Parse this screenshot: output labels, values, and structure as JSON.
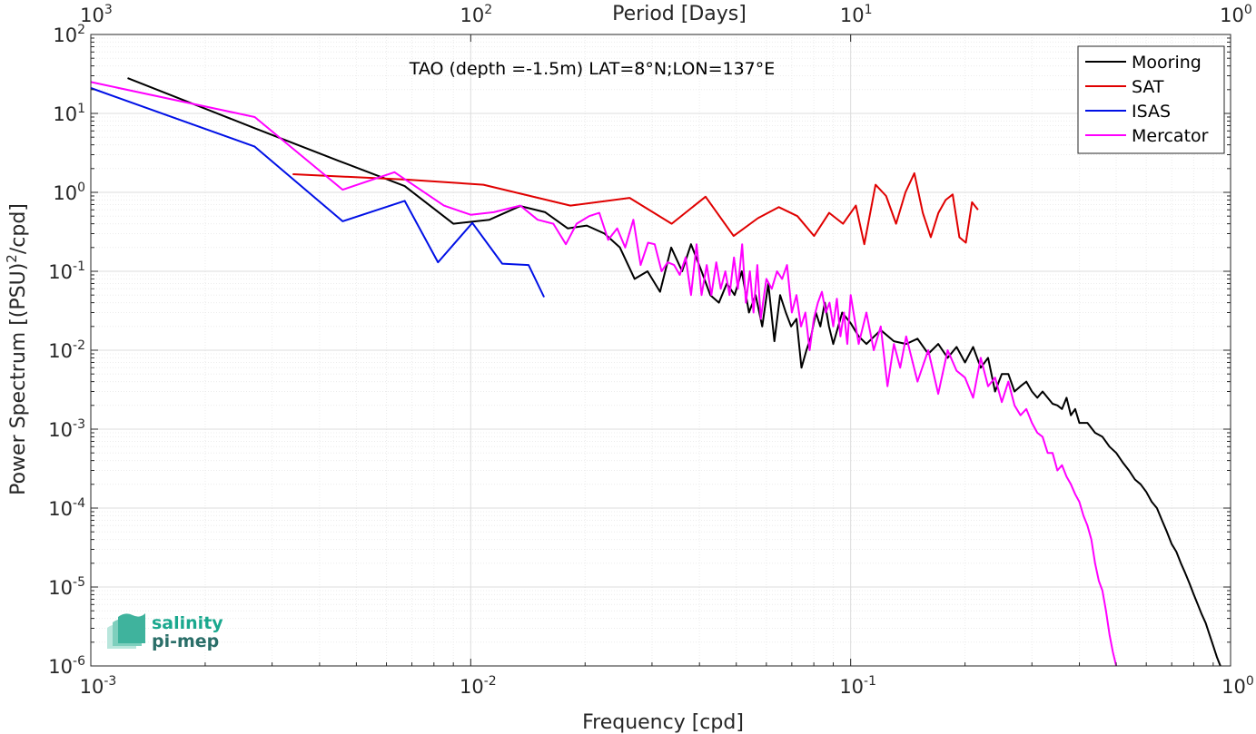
{
  "colors": {
    "mooring": "#000000",
    "sat": "#e00000",
    "isas": "#0010e6",
    "mercator": "#ff00ff",
    "grid_major": "#dcdcdc",
    "grid_minor": "#ececec",
    "axis": "#262626",
    "logo_teal": "#1aa88e",
    "logo_dark": "#2a6e68"
  },
  "logo": {
    "line1": "salinity",
    "line2": "pi-mep",
    "icon": "salinity-pi-mep-logo"
  },
  "chart_data": {
    "type": "line",
    "title": "",
    "annotation": "TAO (depth =-1.5m) LAT=8°N;LON=137°E",
    "xlabel": "Frequency [cpd]",
    "ylabel": "Power Spectrum [(PSU)²/cpd]",
    "ylabel_parts": {
      "before": "Power Spectrum [(PSU)",
      "sup": "2",
      "after": "/cpd]"
    },
    "top_xlabel": "Period [Days]",
    "xscale": "log",
    "yscale": "log",
    "xlim": [
      0.001,
      1
    ],
    "ylim": [
      1e-06,
      100
    ],
    "grid": true,
    "legend_position": "top-right",
    "x_ticks": [
      {
        "value": 0.001,
        "base": "10",
        "exp": "-3"
      },
      {
        "value": 0.01,
        "base": "10",
        "exp": "-2"
      },
      {
        "value": 0.1,
        "base": "10",
        "exp": "-1"
      },
      {
        "value": 1,
        "base": "10",
        "exp": "0"
      }
    ],
    "top_ticks": [
      {
        "period": 1000,
        "base": "10",
        "exp": "3"
      },
      {
        "period": 100,
        "base": "10",
        "exp": "2"
      },
      {
        "period": 10,
        "base": "10",
        "exp": "1"
      },
      {
        "period": 1,
        "base": "10",
        "exp": "0"
      }
    ],
    "y_ticks": [
      {
        "value": 1e-06,
        "base": "10",
        "exp": "-6"
      },
      {
        "value": 1e-05,
        "base": "10",
        "exp": "-5"
      },
      {
        "value": 0.0001,
        "base": "10",
        "exp": "-4"
      },
      {
        "value": 0.001,
        "base": "10",
        "exp": "-3"
      },
      {
        "value": 0.01,
        "base": "10",
        "exp": "-2"
      },
      {
        "value": 0.1,
        "base": "10",
        "exp": "-1"
      },
      {
        "value": 1,
        "base": "10",
        "exp": "0"
      },
      {
        "value": 10,
        "base": "10",
        "exp": "1"
      },
      {
        "value": 100,
        "base": "10",
        "exp": "2"
      }
    ],
    "series": [
      {
        "name": "Mooring",
        "color": "#000000",
        "x": [
          0.00125,
          0.0027,
          0.0045,
          0.0067,
          0.009,
          0.0112,
          0.0135,
          0.0157,
          0.018,
          0.0202,
          0.0225,
          0.0247,
          0.027,
          0.0292,
          0.0315,
          0.0337,
          0.036,
          0.038,
          0.0405,
          0.0427,
          0.045,
          0.0472,
          0.0495,
          0.0517,
          0.054,
          0.0562,
          0.0585,
          0.0607,
          0.063,
          0.0652,
          0.0675,
          0.0697,
          0.072,
          0.0742,
          0.0765,
          0.0787,
          0.081,
          0.0832,
          0.0855,
          0.0877,
          0.09,
          0.095,
          0.1,
          0.105,
          0.11,
          0.12,
          0.13,
          0.14,
          0.15,
          0.16,
          0.17,
          0.18,
          0.19,
          0.2,
          0.21,
          0.22,
          0.23,
          0.24,
          0.25,
          0.26,
          0.27,
          0.28,
          0.29,
          0.3,
          0.31,
          0.32,
          0.33,
          0.34,
          0.35,
          0.36,
          0.37,
          0.38,
          0.39,
          0.4,
          0.42,
          0.44,
          0.46,
          0.48,
          0.5,
          0.52,
          0.54,
          0.56,
          0.58,
          0.6,
          0.62,
          0.64,
          0.66,
          0.68,
          0.7,
          0.72,
          0.74,
          0.76,
          0.78,
          0.8,
          0.82,
          0.84,
          0.86,
          0.88,
          0.9,
          0.92,
          0.94
        ],
        "y": [
          28,
          6.5,
          2.5,
          1.2,
          0.4,
          0.45,
          0.67,
          0.56,
          0.35,
          0.38,
          0.3,
          0.2,
          0.08,
          0.1,
          0.055,
          0.2,
          0.1,
          0.22,
          0.1,
          0.05,
          0.04,
          0.07,
          0.05,
          0.1,
          0.03,
          0.05,
          0.02,
          0.07,
          0.013,
          0.05,
          0.03,
          0.02,
          0.025,
          0.006,
          0.01,
          0.015,
          0.03,
          0.02,
          0.04,
          0.02,
          0.012,
          0.03,
          0.022,
          0.015,
          0.012,
          0.018,
          0.013,
          0.012,
          0.014,
          0.009,
          0.012,
          0.008,
          0.011,
          0.007,
          0.011,
          0.006,
          0.008,
          0.003,
          0.005,
          0.005,
          0.003,
          0.0035,
          0.004,
          0.003,
          0.0025,
          0.003,
          0.0025,
          0.0021,
          0.002,
          0.0018,
          0.0025,
          0.0015,
          0.0018,
          0.0012,
          0.0012,
          0.0009,
          0.0008,
          0.0006,
          0.0005,
          0.00038,
          0.0003,
          0.00023,
          0.0002,
          0.00016,
          0.00012,
          0.0001,
          7e-05,
          5e-05,
          3.5e-05,
          2.8e-05,
          2e-05,
          1.5e-05,
          1.1e-05,
          8e-06,
          6e-06,
          4.5e-06,
          3.5e-06,
          2.5e-06,
          1.8e-06,
          1.3e-06,
          1e-06
        ]
      },
      {
        "name": "SAT",
        "color": "#e00000",
        "x": [
          0.0034,
          0.0068,
          0.0108,
          0.0183,
          0.0262,
          0.0338,
          0.0415,
          0.0492,
          0.057,
          0.0647,
          0.0724,
          0.0801,
          0.0878,
          0.0955,
          0.1032,
          0.1086,
          0.1163,
          0.124,
          0.1317,
          0.1394,
          0.1471,
          0.1548,
          0.1625,
          0.1702,
          0.1779,
          0.1856,
          0.1933,
          0.201,
          0.2087,
          0.2164
        ],
        "y": [
          1.7,
          1.45,
          1.25,
          0.68,
          0.85,
          0.4,
          0.88,
          0.28,
          0.47,
          0.65,
          0.5,
          0.28,
          0.55,
          0.4,
          0.68,
          0.22,
          1.25,
          0.9,
          0.4,
          1.0,
          1.75,
          0.55,
          0.27,
          0.55,
          0.8,
          0.94,
          0.27,
          0.23,
          0.75,
          0.6
        ]
      },
      {
        "name": "ISAS",
        "color": "#0010e6",
        "x": [
          0.001,
          0.0027,
          0.0046,
          0.0067,
          0.0082,
          0.0101,
          0.0121,
          0.0142,
          0.0156
        ],
        "y": [
          21,
          3.8,
          0.43,
          0.78,
          0.13,
          0.41,
          0.125,
          0.12,
          0.047
        ]
      },
      {
        "name": "Mercator",
        "color": "#ff00ff",
        "x": [
          0.001,
          0.0027,
          0.0046,
          0.0063,
          0.0085,
          0.01,
          0.0115,
          0.0135,
          0.015,
          0.0165,
          0.0178,
          0.019,
          0.0205,
          0.0218,
          0.023,
          0.0243,
          0.0255,
          0.0268,
          0.028,
          0.0293,
          0.0305,
          0.0318,
          0.033,
          0.0343,
          0.0355,
          0.0368,
          0.038,
          0.0393,
          0.0405,
          0.0418,
          0.043,
          0.0443,
          0.0455,
          0.0468,
          0.048,
          0.0493,
          0.0505,
          0.0518,
          0.053,
          0.0543,
          0.0555,
          0.0568,
          0.058,
          0.06,
          0.062,
          0.064,
          0.066,
          0.068,
          0.07,
          0.072,
          0.074,
          0.076,
          0.078,
          0.08,
          0.082,
          0.084,
          0.086,
          0.088,
          0.09,
          0.092,
          0.094,
          0.096,
          0.098,
          0.1,
          0.105,
          0.11,
          0.115,
          0.12,
          0.125,
          0.13,
          0.135,
          0.14,
          0.15,
          0.16,
          0.17,
          0.18,
          0.19,
          0.2,
          0.21,
          0.22,
          0.23,
          0.24,
          0.25,
          0.26,
          0.27,
          0.28,
          0.29,
          0.3,
          0.31,
          0.32,
          0.33,
          0.34,
          0.35,
          0.36,
          0.37,
          0.38,
          0.39,
          0.4,
          0.41,
          0.42,
          0.43,
          0.44,
          0.45,
          0.46,
          0.47,
          0.48,
          0.49,
          0.5
        ],
        "y": [
          25,
          9,
          1.08,
          1.8,
          0.68,
          0.52,
          0.56,
          0.68,
          0.45,
          0.4,
          0.22,
          0.4,
          0.5,
          0.55,
          0.25,
          0.35,
          0.2,
          0.45,
          0.12,
          0.23,
          0.22,
          0.1,
          0.13,
          0.12,
          0.09,
          0.15,
          0.05,
          0.22,
          0.05,
          0.12,
          0.05,
          0.13,
          0.06,
          0.1,
          0.05,
          0.15,
          0.06,
          0.22,
          0.04,
          0.1,
          0.03,
          0.12,
          0.025,
          0.08,
          0.06,
          0.1,
          0.08,
          0.12,
          0.03,
          0.05,
          0.02,
          0.03,
          0.01,
          0.025,
          0.04,
          0.055,
          0.03,
          0.04,
          0.02,
          0.045,
          0.015,
          0.03,
          0.012,
          0.05,
          0.012,
          0.03,
          0.01,
          0.02,
          0.0035,
          0.012,
          0.006,
          0.015,
          0.004,
          0.01,
          0.0028,
          0.01,
          0.0055,
          0.0045,
          0.0025,
          0.008,
          0.0035,
          0.0045,
          0.0022,
          0.004,
          0.002,
          0.0015,
          0.0018,
          0.0012,
          0.0009,
          0.0008,
          0.0005,
          0.0005,
          0.0003,
          0.00035,
          0.00025,
          0.0002,
          0.00015,
          0.00012,
          8e-05,
          6e-05,
          4e-05,
          2e-05,
          1.2e-05,
          9e-06,
          5e-06,
          2.5e-06,
          1.5e-06,
          1e-06
        ]
      }
    ]
  }
}
